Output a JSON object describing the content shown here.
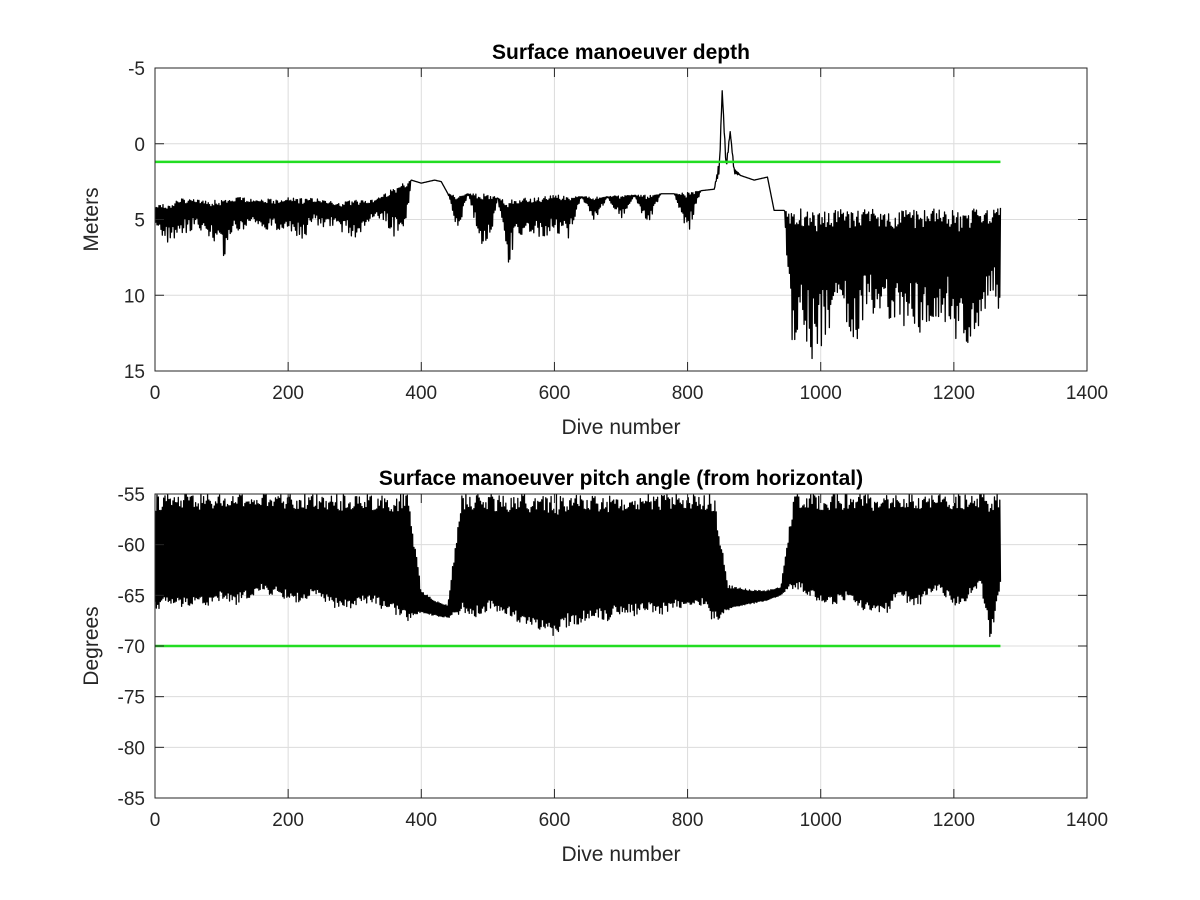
{
  "chart_data": [
    {
      "type": "line",
      "title": "Surface manoeuver depth",
      "xlabel": "Dive number",
      "ylabel": "Meters",
      "xlim": [
        0,
        1400
      ],
      "ylim": [
        -5,
        15
      ],
      "y_reversed": true,
      "grid": true,
      "x_ticks": [
        "0",
        "200",
        "400",
        "600",
        "800",
        "1000",
        "1200",
        "1400"
      ],
      "y_ticks": [
        "-5",
        "0",
        "5",
        "10",
        "15"
      ],
      "reference_line": {
        "y": 1.2,
        "x": [
          0,
          1270
        ],
        "color": "#22dd22"
      },
      "series": [
        {
          "color": "#000000",
          "x": [
            0,
            20,
            40,
            60,
            80,
            100,
            120,
            140,
            160,
            180,
            200,
            220,
            240,
            260,
            280,
            300,
            320,
            340,
            355,
            365,
            380,
            385,
            400,
            420,
            430,
            440,
            455,
            470,
            490,
            505,
            515,
            530,
            545,
            560,
            580,
            600,
            620,
            640,
            660,
            680,
            700,
            720,
            740,
            760,
            780,
            800,
            820,
            840,
            848,
            852,
            858,
            864,
            870,
            880,
            900,
            920,
            930,
            945,
            955,
            970,
            990,
            1010,
            1030,
            1050,
            1070,
            1090,
            1110,
            1130,
            1150,
            1170,
            1190,
            1210,
            1230,
            1250,
            1270
          ],
          "top": [
            4.0,
            4.0,
            3.6,
            3.7,
            3.8,
            3.6,
            3.5,
            3.6,
            3.6,
            3.7,
            3.5,
            3.6,
            3.6,
            3.7,
            3.9,
            3.7,
            3.8,
            3.5,
            3.0,
            2.7,
            2.5,
            2.4,
            2.6,
            2.4,
            2.5,
            3.3,
            3.5,
            3.3,
            3.3,
            3.4,
            3.6,
            3.6,
            3.6,
            3.6,
            3.5,
            3.4,
            3.4,
            3.5,
            3.5,
            3.5,
            3.4,
            3.4,
            3.4,
            3.3,
            3.3,
            3.2,
            3.1,
            3.0,
            1.0,
            -3.5,
            1.2,
            -0.8,
            1.6,
            2.1,
            2.4,
            2.2,
            4.4,
            4.4,
            4.4,
            4.3,
            4.4,
            4.3,
            4.3,
            4.3,
            4.3,
            4.4,
            4.4,
            4.3,
            4.4,
            4.3,
            4.4,
            4.3,
            4.3,
            4.3,
            4.2
          ],
          "bottom": [
            5.8,
            6.6,
            6.0,
            5.6,
            6.0,
            7.8,
            5.8,
            5.6,
            5.6,
            5.8,
            5.8,
            6.5,
            5.4,
            5.6,
            5.8,
            6.2,
            5.4,
            5.0,
            5.8,
            6.6,
            4.5,
            2.4,
            2.6,
            2.4,
            2.5,
            3.3,
            5.9,
            3.3,
            6.8,
            5.9,
            3.6,
            8.2,
            6.1,
            6.1,
            6.2,
            5.9,
            6.5,
            3.5,
            5.1,
            3.5,
            5.2,
            3.4,
            5.5,
            3.3,
            3.3,
            6.1,
            3.1,
            3.0,
            2.0,
            -3.5,
            2.0,
            -0.8,
            2.0,
            2.1,
            2.4,
            2.2,
            4.4,
            4.4,
            13.6,
            13.0,
            14.4,
            12.5,
            12.0,
            13.5,
            11.5,
            12.3,
            12.8,
            12.0,
            13.2,
            12.7,
            12.0,
            14.8,
            12.5,
            11.6,
            11.0
          ]
        }
      ]
    },
    {
      "type": "line",
      "title": "Surface manoeuver pitch angle (from horizontal)",
      "xlabel": "Dive number",
      "ylabel": "Degrees",
      "xlim": [
        0,
        1400
      ],
      "ylim": [
        -85,
        -55
      ],
      "grid": true,
      "x_ticks": [
        "0",
        "200",
        "400",
        "600",
        "800",
        "1000",
        "1200",
        "1400"
      ],
      "y_ticks": [
        "-55",
        "-60",
        "-65",
        "-70",
        "-75",
        "-80",
        "-85"
      ],
      "reference_line": {
        "y": -70,
        "x": [
          0,
          1270
        ],
        "color": "#22dd22"
      },
      "series": [
        {
          "color": "#000000",
          "x": [
            0,
            20,
            40,
            60,
            80,
            100,
            120,
            140,
            160,
            180,
            200,
            220,
            240,
            260,
            280,
            300,
            320,
            340,
            360,
            380,
            400,
            420,
            440,
            460,
            480,
            500,
            520,
            540,
            560,
            580,
            600,
            620,
            640,
            660,
            680,
            700,
            720,
            740,
            760,
            780,
            800,
            820,
            840,
            860,
            880,
            900,
            920,
            940,
            960,
            980,
            1000,
            1020,
            1040,
            1060,
            1080,
            1100,
            1120,
            1140,
            1160,
            1180,
            1200,
            1220,
            1240,
            1255,
            1270
          ],
          "top": [
            -55,
            -55,
            -55,
            -55,
            -55,
            -55,
            -55,
            -55,
            -55,
            -55,
            -55,
            -55,
            -55,
            -55,
            -55,
            -55,
            -55,
            -55,
            -55,
            -55,
            -64.5,
            -65.5,
            -66.0,
            -55,
            -55,
            -55,
            -55,
            -55,
            -55,
            -55,
            -55,
            -55,
            -55,
            -55,
            -55,
            -55,
            -55,
            -55,
            -55,
            -55,
            -55,
            -55,
            -55,
            -64.0,
            -64.2,
            -64.5,
            -64.5,
            -64.2,
            -55,
            -55,
            -55,
            -55,
            -55,
            -55,
            -55,
            -55,
            -55,
            -55,
            -55,
            -55,
            -55,
            -55,
            -55,
            -55,
            -55
          ],
          "bottom": [
            -66.5,
            -66.0,
            -66.3,
            -65.8,
            -66.2,
            -65.5,
            -66.0,
            -65.3,
            -64.8,
            -65.0,
            -65.5,
            -65.8,
            -65.2,
            -66.0,
            -66.5,
            -66.2,
            -65.8,
            -66.3,
            -67.0,
            -67.5,
            -66.8,
            -67.0,
            -67.2,
            -66.8,
            -67.3,
            -66.5,
            -66.8,
            -67.5,
            -68.0,
            -68.5,
            -69.3,
            -68.0,
            -67.8,
            -67.2,
            -67.5,
            -66.8,
            -67.0,
            -66.5,
            -67.0,
            -66.2,
            -66.5,
            -66.0,
            -67.8,
            -66.5,
            -66.0,
            -65.8,
            -65.5,
            -65.0,
            -64.3,
            -65.0,
            -65.8,
            -66.0,
            -65.5,
            -66.3,
            -67.0,
            -66.8,
            -65.0,
            -66.5,
            -65.2,
            -64.8,
            -66.0,
            -65.5,
            -64.0,
            -69.5,
            -64.5
          ]
        }
      ]
    }
  ]
}
